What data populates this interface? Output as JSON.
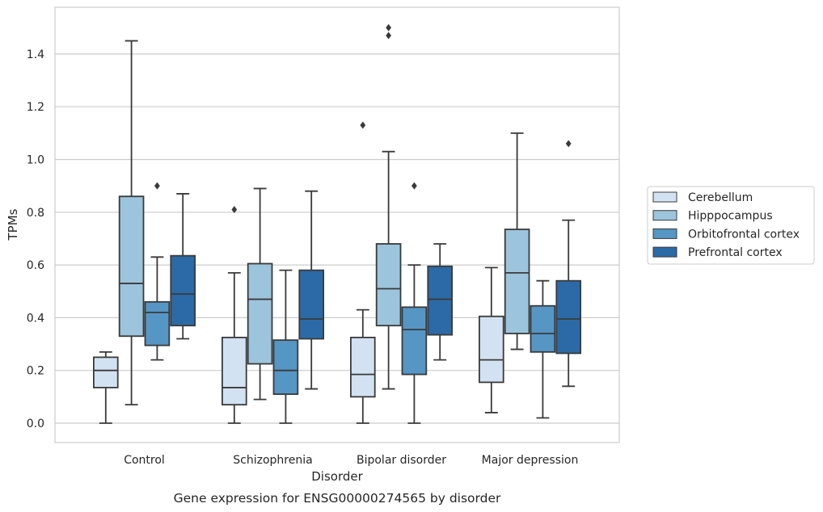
{
  "chart_data": {
    "type": "box",
    "xlabel": "Disorder",
    "ylabel": "TPMs",
    "caption": "Gene expression for ENSG00000274565 by disorder",
    "ylim": [
      -0.07,
      1.58
    ],
    "yticks": [
      "0.0",
      "0.2",
      "0.4",
      "0.6",
      "0.8",
      "1.0",
      "1.2",
      "1.4"
    ],
    "categories": [
      "Control",
      "Schizophrenia",
      "Bipolar disorder",
      "Major depression"
    ],
    "grid": "horizontal",
    "legend_position": "right",
    "series": [
      {
        "name": "Cerebellum",
        "color": "#d3e2f2",
        "boxes": [
          {
            "whislo": 0.0,
            "q1": 0.135,
            "med": 0.2,
            "q3": 0.25,
            "whishi": 0.27,
            "fliers": []
          },
          {
            "whislo": 0.0,
            "q1": 0.07,
            "med": 0.135,
            "q3": 0.325,
            "whishi": 0.57,
            "fliers": [
              0.81
            ]
          },
          {
            "whislo": 0.0,
            "q1": 0.1,
            "med": 0.185,
            "q3": 0.325,
            "whishi": 0.43,
            "fliers": [
              1.13
            ]
          },
          {
            "whislo": 0.04,
            "q1": 0.155,
            "med": 0.24,
            "q3": 0.405,
            "whishi": 0.59,
            "fliers": []
          }
        ]
      },
      {
        "name": "Hipppocampus",
        "color": "#9cc4dc",
        "boxes": [
          {
            "whislo": 0.07,
            "q1": 0.33,
            "med": 0.53,
            "q3": 0.86,
            "whishi": 1.45,
            "fliers": []
          },
          {
            "whislo": 0.09,
            "q1": 0.225,
            "med": 0.47,
            "q3": 0.605,
            "whishi": 0.89,
            "fliers": []
          },
          {
            "whislo": 0.13,
            "q1": 0.37,
            "med": 0.51,
            "q3": 0.68,
            "whishi": 1.03,
            "fliers": [
              1.47,
              1.5
            ]
          },
          {
            "whislo": 0.28,
            "q1": 0.34,
            "med": 0.57,
            "q3": 0.735,
            "whishi": 1.1,
            "fliers": []
          }
        ]
      },
      {
        "name": "Orbitofrontal cortex",
        "color": "#5596c5",
        "boxes": [
          {
            "whislo": 0.24,
            "q1": 0.295,
            "med": 0.42,
            "q3": 0.46,
            "whishi": 0.63,
            "fliers": [
              0.9
            ]
          },
          {
            "whislo": 0.0,
            "q1": 0.11,
            "med": 0.2,
            "q3": 0.315,
            "whishi": 0.58,
            "fliers": []
          },
          {
            "whislo": 0.0,
            "q1": 0.185,
            "med": 0.355,
            "q3": 0.44,
            "whishi": 0.6,
            "fliers": [
              0.9
            ]
          },
          {
            "whislo": 0.02,
            "q1": 0.27,
            "med": 0.34,
            "q3": 0.445,
            "whishi": 0.54,
            "fliers": []
          }
        ]
      },
      {
        "name": "Prefrontal cortex",
        "color": "#2b6aa7",
        "boxes": [
          {
            "whislo": 0.32,
            "q1": 0.37,
            "med": 0.49,
            "q3": 0.635,
            "whishi": 0.87,
            "fliers": []
          },
          {
            "whislo": 0.13,
            "q1": 0.32,
            "med": 0.395,
            "q3": 0.58,
            "whishi": 0.88,
            "fliers": []
          },
          {
            "whislo": 0.24,
            "q1": 0.335,
            "med": 0.47,
            "q3": 0.595,
            "whishi": 0.68,
            "fliers": []
          },
          {
            "whislo": 0.14,
            "q1": 0.265,
            "med": 0.395,
            "q3": 0.54,
            "whishi": 0.77,
            "fliers": [
              1.06
            ]
          }
        ]
      }
    ]
  }
}
